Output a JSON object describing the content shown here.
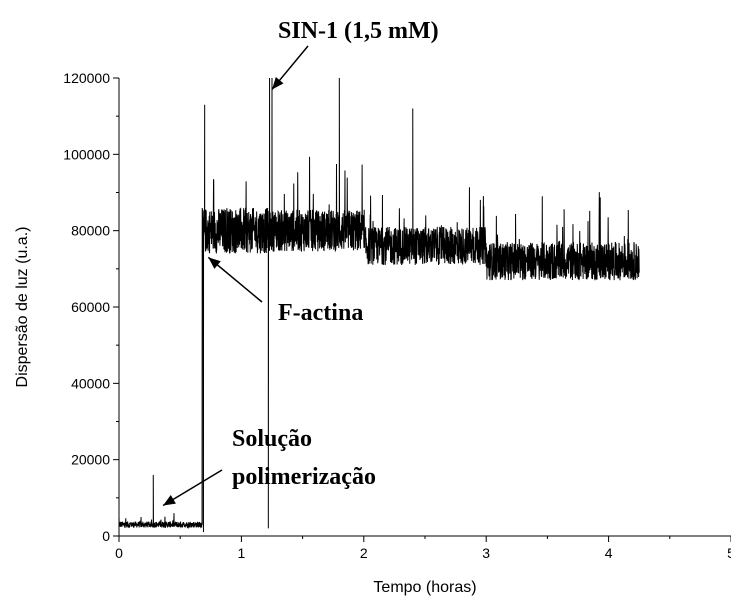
{
  "chart_data": {
    "type": "line",
    "xlabel": "Tempo (horas)",
    "ylabel": "Dispersão de luz (u.a.)",
    "xlim": [
      0,
      5
    ],
    "ylim": [
      0,
      120000
    ],
    "x_ticks": [
      "0",
      "1",
      "2",
      "3",
      "4",
      "5"
    ],
    "y_ticks": [
      "0",
      "20000",
      "40000",
      "60000",
      "80000",
      "100000",
      "120000"
    ],
    "grid": false,
    "legend": "none",
    "line_color": "#000000",
    "series": [
      {
        "segments": [
          {
            "x_start": 0.0,
            "x_end": 0.68,
            "baseline": 3000,
            "noise": 800
          },
          {
            "x_start": 0.68,
            "x_end": 1.22,
            "baseline": 80000,
            "noise": 6000
          },
          {
            "x_start": 1.22,
            "x_end": 2.0,
            "baseline": 80000,
            "noise": 5500
          },
          {
            "x_start": 2.0,
            "x_end": 3.0,
            "baseline": 76000,
            "noise": 5000
          },
          {
            "x_start": 3.0,
            "x_end": 4.25,
            "baseline": 72000,
            "noise": 5000
          }
        ],
        "x": [
          0.0,
          0.1,
          0.27,
          0.28,
          0.5,
          0.68,
          0.69,
          0.7,
          0.75,
          0.9,
          1.0,
          1.1,
          1.21,
          1.22,
          1.23,
          1.25,
          1.3,
          1.5,
          1.8,
          2.0,
          2.4,
          2.8,
          3.0,
          3.2,
          3.5,
          3.8,
          4.0,
          4.25
        ],
        "y": [
          5000,
          3000,
          3000,
          16000,
          3000,
          3000,
          1000,
          113000,
          80000,
          82000,
          80000,
          80000,
          80000,
          2000,
          120000,
          120000,
          85000,
          80000,
          120000,
          78000,
          112000,
          75000,
          74000,
          72000,
          73000,
          71000,
          70000,
          69000
        ]
      }
    ],
    "annotations": [
      {
        "text": "SIN-1 (1,5 mM)",
        "arrow_to": [
          1.25,
          117000
        ]
      },
      {
        "text": "F-actina",
        "arrow_to": [
          0.73,
          73000
        ]
      },
      {
        "text": "Solução",
        "arrow_to": [
          0.36,
          8000
        ]
      },
      {
        "text": "polimerização"
      }
    ]
  }
}
